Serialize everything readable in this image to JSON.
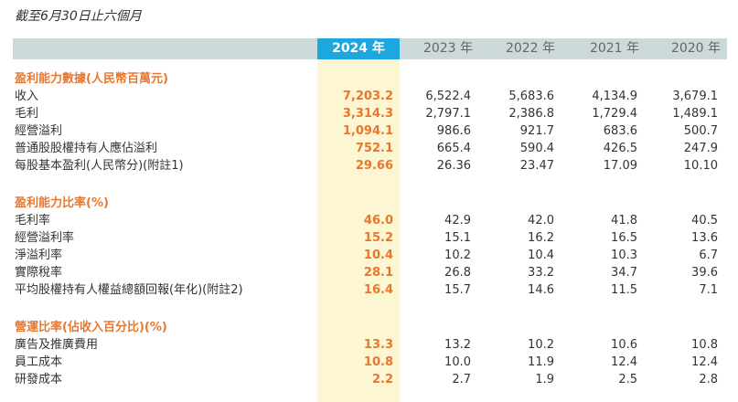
{
  "caption": "截至6月30日止六個月",
  "columns": [
    "2024 年",
    "2023 年",
    "2022 年",
    "2021 年",
    "2020 年"
  ],
  "sections": [
    {
      "title": "盈利能力數據(人民幣百萬元)",
      "rows": [
        {
          "label": "收入",
          "values": [
            "7,203.2",
            "6,522.4",
            "5,683.6",
            "4,134.9",
            "3,679.1"
          ]
        },
        {
          "label": "毛利",
          "values": [
            "3,314.3",
            "2,797.1",
            "2,386.8",
            "1,729.4",
            "1,489.1"
          ]
        },
        {
          "label": "經營溢利",
          "values": [
            "1,094.1",
            "986.6",
            "921.7",
            "683.6",
            "500.7"
          ]
        },
        {
          "label": "普通股股權持有人應佔溢利",
          "values": [
            "752.1",
            "665.4",
            "590.4",
            "426.5",
            "247.9"
          ]
        },
        {
          "label": "每股基本盈利(人民幣分)(附註1)",
          "values": [
            "29.66",
            "26.36",
            "23.47",
            "17.09",
            "10.10"
          ]
        }
      ]
    },
    {
      "title": "盈利能力比率(%)",
      "rows": [
        {
          "label": "毛利率",
          "values": [
            "46.0",
            "42.9",
            "42.0",
            "41.8",
            "40.5"
          ]
        },
        {
          "label": "經營溢利率",
          "values": [
            "15.2",
            "15.1",
            "16.2",
            "16.5",
            "13.6"
          ]
        },
        {
          "label": "淨溢利率",
          "values": [
            "10.4",
            "10.2",
            "10.4",
            "10.3",
            "6.7"
          ]
        },
        {
          "label": "實際稅率",
          "values": [
            "28.1",
            "26.8",
            "33.2",
            "34.7",
            "39.6"
          ]
        },
        {
          "label": "平均股權持有人權益總額回報(年化)(附註2)",
          "values": [
            "16.4",
            "15.7",
            "14.6",
            "11.5",
            "7.1"
          ]
        }
      ]
    },
    {
      "title": "營運比率(佔收入百分比)(%)",
      "rows": [
        {
          "label": "廣告及推廣費用",
          "values": [
            "13.3",
            "13.2",
            "10.2",
            "10.6",
            "10.8"
          ]
        },
        {
          "label": "員工成本",
          "values": [
            "10.8",
            "10.0",
            "11.9",
            "12.4",
            "12.4"
          ]
        },
        {
          "label": "研發成本",
          "values": [
            "2.2",
            "2.7",
            "1.9",
            "2.5",
            "2.8"
          ]
        }
      ]
    }
  ]
}
